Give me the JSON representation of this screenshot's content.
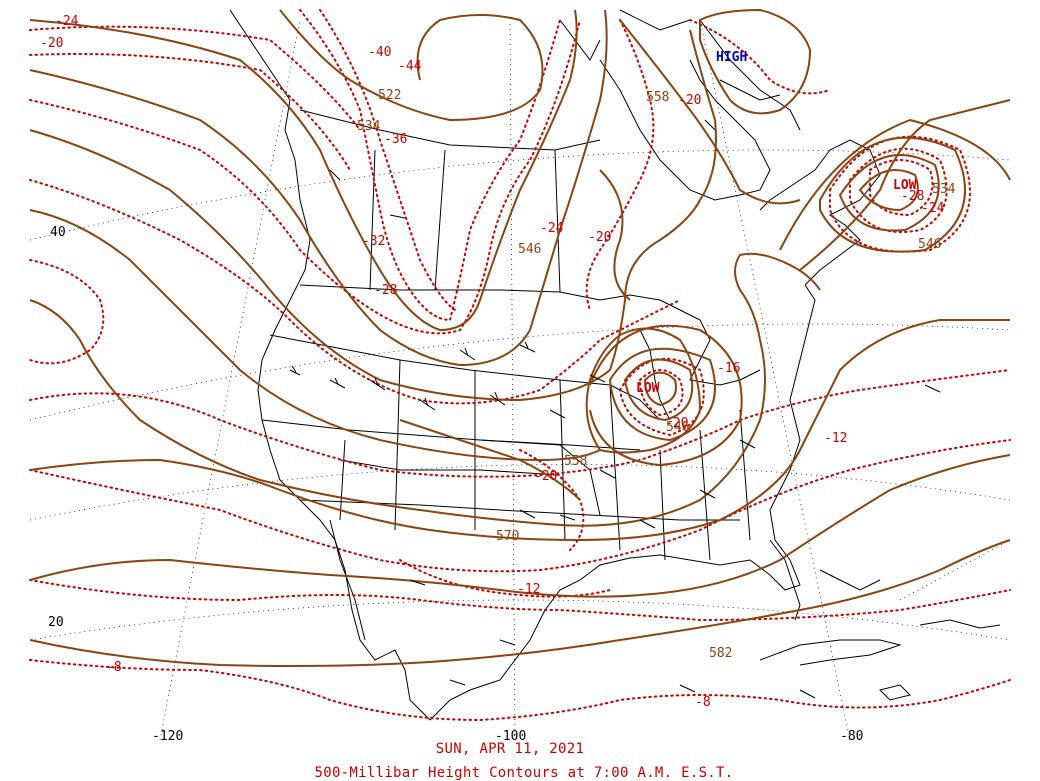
{
  "map": {
    "date_label": "SUN, APR 11, 2021",
    "title": "500-Millibar Height Contours at 7:00 A.M. E.S.T.",
    "lat_labels": [
      "40",
      "20"
    ],
    "lon_labels": [
      "-120",
      "-100",
      "-80"
    ],
    "pressure_centers": [
      {
        "type": "HIGH",
        "label": "HIGH",
        "color": "#0000cc"
      },
      {
        "type": "LOW",
        "label": "LOW",
        "color": "#cc0000"
      },
      {
        "type": "LOW",
        "label": "LOW",
        "color": "#cc0000"
      }
    ],
    "height_labels": [
      "522",
      "534",
      "546",
      "558",
      "570",
      "582",
      "546",
      "534",
      "558",
      "546"
    ],
    "temperature_labels": [
      "-24",
      "-20",
      "-40",
      "-44",
      "-36",
      "-32",
      "-28",
      "-24",
      "-20",
      "-20",
      "-16",
      "-12",
      "-20",
      "-12",
      "-8",
      "-8",
      "-28",
      "-24",
      "-20"
    ],
    "colors": {
      "height_contour": "#8b4513",
      "temperature_contour": "#cc0000",
      "land_outline": "#000000",
      "graticule": "#000000"
    }
  }
}
